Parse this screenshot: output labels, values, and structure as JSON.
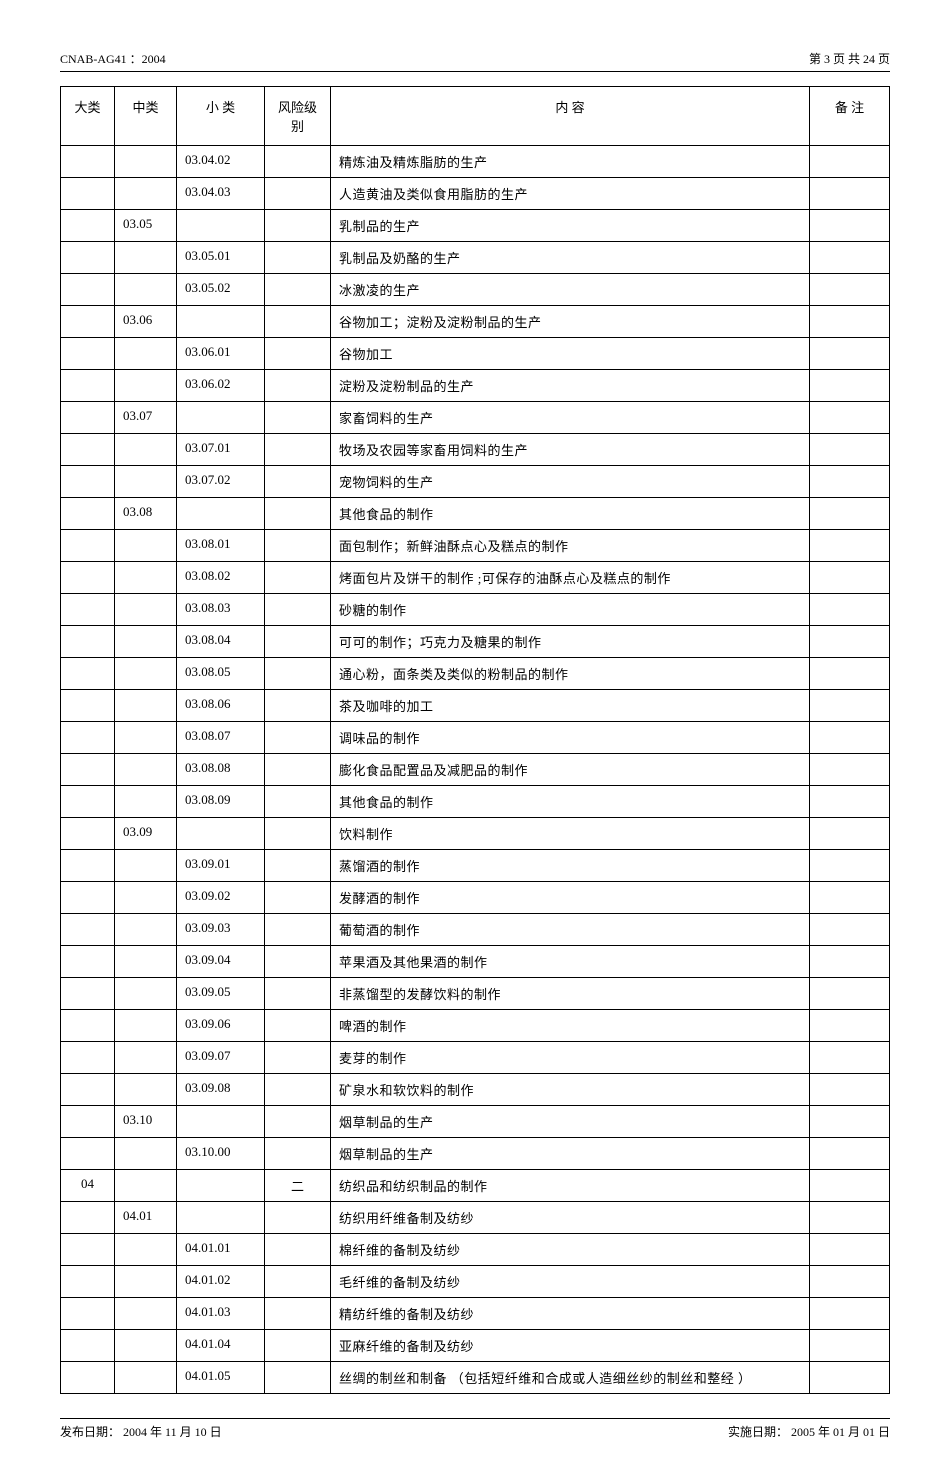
{
  "header": {
    "doc_id": "CNAB-AG41 ：2004",
    "page_info_prefix": "第",
    "page_current": "3",
    "page_info_mid": "页  共",
    "page_total": "24",
    "page_info_suffix": "页"
  },
  "table": {
    "columns": {
      "dalei": "大类",
      "zhonglei": "中类",
      "xiaolei": "小   类",
      "fengxian": "风险级别",
      "neirong": "内          容",
      "beizhu": "备   注"
    },
    "rows": [
      {
        "dl": "",
        "zl": "",
        "xl": "03.04.02",
        "fx": "",
        "nr": "精炼油及精炼脂肪的生产"
      },
      {
        "dl": "",
        "zl": "",
        "xl": "03.04.03",
        "fx": "",
        "nr": "人造黄油及类似食用脂肪的生产"
      },
      {
        "dl": "",
        "zl": "03.05",
        "xl": "",
        "fx": "",
        "nr": "乳制品的生产"
      },
      {
        "dl": "",
        "zl": "",
        "xl": "03.05.01",
        "fx": "",
        "nr": "乳制品及奶酪的生产"
      },
      {
        "dl": "",
        "zl": "",
        "xl": "03.05.02",
        "fx": "",
        "nr": "冰激凌的生产"
      },
      {
        "dl": "",
        "zl": "03.06",
        "xl": "",
        "fx": "",
        "nr": "谷物加工；淀粉及淀粉制品的生产"
      },
      {
        "dl": "",
        "zl": "",
        "xl": "03.06.01",
        "fx": "",
        "nr": "谷物加工"
      },
      {
        "dl": "",
        "zl": "",
        "xl": "03.06.02",
        "fx": "",
        "nr": "淀粉及淀粉制品的生产"
      },
      {
        "dl": "",
        "zl": "03.07",
        "xl": "",
        "fx": "",
        "nr": "家畜饲料的生产"
      },
      {
        "dl": "",
        "zl": "",
        "xl": "03.07.01",
        "fx": "",
        "nr": "牧场及农园等家畜用饲料的生产"
      },
      {
        "dl": "",
        "zl": "",
        "xl": "03.07.02",
        "fx": "",
        "nr": "宠物饲料的生产"
      },
      {
        "dl": "",
        "zl": "03.08",
        "xl": "",
        "fx": "",
        "nr": "其他食品的制作"
      },
      {
        "dl": "",
        "zl": "",
        "xl": "03.08.01",
        "fx": "",
        "nr": "面包制作；新鲜油酥点心及糕点的制作"
      },
      {
        "dl": "",
        "zl": "",
        "xl": "03.08.02",
        "fx": "",
        "nr": "烤面包片及饼干的制作   ;可保存的油酥点心及糕点的制作"
      },
      {
        "dl": "",
        "zl": "",
        "xl": "03.08.03",
        "fx": "",
        "nr": "砂糖的制作"
      },
      {
        "dl": "",
        "zl": "",
        "xl": "03.08.04",
        "fx": "",
        "nr": "可可的制作；巧克力及糖果的制作"
      },
      {
        "dl": "",
        "zl": "",
        "xl": "03.08.05",
        "fx": "",
        "nr": "通心粉，面条类及类似的粉制品的制作"
      },
      {
        "dl": "",
        "zl": "",
        "xl": "03.08.06",
        "fx": "",
        "nr": "茶及咖啡的加工"
      },
      {
        "dl": "",
        "zl": "",
        "xl": "03.08.07",
        "fx": "",
        "nr": "调味品的制作"
      },
      {
        "dl": "",
        "zl": "",
        "xl": "03.08.08",
        "fx": "",
        "nr": "膨化食品配置品及减肥品的制作"
      },
      {
        "dl": "",
        "zl": "",
        "xl": "03.08.09",
        "fx": "",
        "nr": "其他食品的制作"
      },
      {
        "dl": "",
        "zl": "03.09",
        "xl": "",
        "fx": "",
        "nr": "饮料制作"
      },
      {
        "dl": "",
        "zl": "",
        "xl": "03.09.01",
        "fx": "",
        "nr": "蒸馏酒的制作"
      },
      {
        "dl": "",
        "zl": "",
        "xl": "03.09.02",
        "fx": "",
        "nr": "发酵酒的制作"
      },
      {
        "dl": "",
        "zl": "",
        "xl": "03.09.03",
        "fx": "",
        "nr": "葡萄酒的制作"
      },
      {
        "dl": "",
        "zl": "",
        "xl": "03.09.04",
        "fx": "",
        "nr": "苹果酒及其他果酒的制作"
      },
      {
        "dl": "",
        "zl": "",
        "xl": "03.09.05",
        "fx": "",
        "nr": "非蒸馏型的发酵饮料的制作"
      },
      {
        "dl": "",
        "zl": "",
        "xl": "03.09.06",
        "fx": "",
        "nr": "啤酒的制作"
      },
      {
        "dl": "",
        "zl": "",
        "xl": "03.09.07",
        "fx": "",
        "nr": "麦芽的制作"
      },
      {
        "dl": "",
        "zl": "",
        "xl": "03.09.08",
        "fx": "",
        "nr": "矿泉水和软饮料的制作"
      },
      {
        "dl": "",
        "zl": "03.10",
        "xl": "",
        "fx": "",
        "nr": "烟草制品的生产"
      },
      {
        "dl": "",
        "zl": "",
        "xl": "03.10.00",
        "fx": "",
        "nr": "烟草制品的生产"
      },
      {
        "dl": "04",
        "zl": "",
        "xl": "",
        "fx": "二",
        "nr": "纺织品和纺织制品的制作"
      },
      {
        "dl": "",
        "zl": "04.01",
        "xl": "",
        "fx": "",
        "nr": "纺织用纤维备制及纺纱"
      },
      {
        "dl": "",
        "zl": "",
        "xl": "04.01.01",
        "fx": "",
        "nr": "棉纤维的备制及纺纱"
      },
      {
        "dl": "",
        "zl": "",
        "xl": "04.01.02",
        "fx": "",
        "nr": "毛纤维的备制及纺纱"
      },
      {
        "dl": "",
        "zl": "",
        "xl": "04.01.03",
        "fx": "",
        "nr": "精纺纤维的备制及纺纱"
      },
      {
        "dl": "",
        "zl": "",
        "xl": "04.01.04",
        "fx": "",
        "nr": "亚麻纤维的备制及纺纱"
      },
      {
        "dl": "",
        "zl": "",
        "xl": "04.01.05",
        "fx": "",
        "nr": "丝绸的制丝和制备 （包括短纤维和合成或人造细丝纱的制丝和整经   ）"
      }
    ]
  },
  "footer": {
    "left_label": "发布日期：",
    "left_date": "2004 年 11 月 10 日",
    "right_label": "实施日期：",
    "right_date": "2005 年 01 月 01 日"
  }
}
